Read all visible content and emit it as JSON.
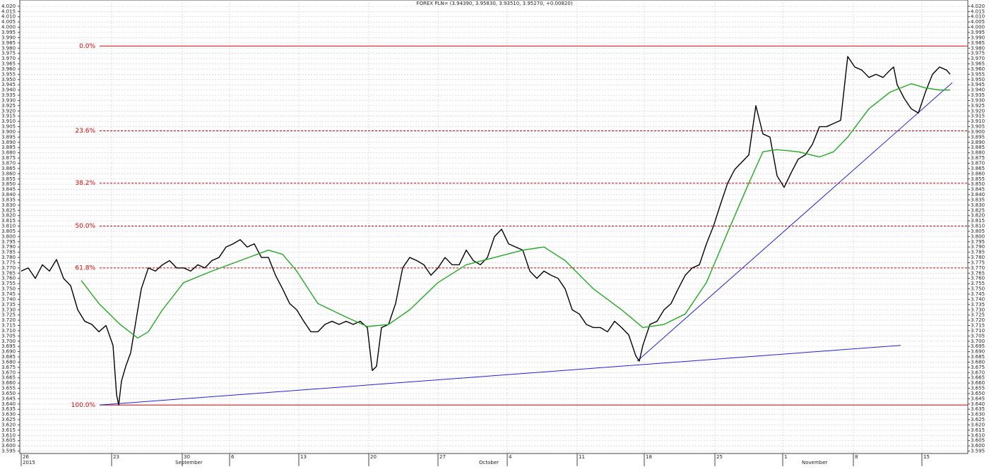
{
  "chart_data": {
    "type": "line",
    "title": "FOREX PLN= (3.94390, 3.95830, 3.93510, 3.95270, +0.00820)",
    "xlim": [
      28,
      1370
    ],
    "xticks": [
      {
        "value": 30,
        "label": "26"
      },
      {
        "value": 158,
        "label": "23"
      },
      {
        "value": 258,
        "label": "30"
      },
      {
        "value": 325,
        "label": "6"
      },
      {
        "value": 423,
        "label": "13"
      },
      {
        "value": 522,
        "label": "20"
      },
      {
        "value": 620,
        "label": "27"
      },
      {
        "value": 718,
        "label": "4"
      },
      {
        "value": 817,
        "label": "11"
      },
      {
        "value": 912,
        "label": "18"
      },
      {
        "value": 1012,
        "label": "25"
      },
      {
        "value": 1108,
        "label": "1"
      },
      {
        "value": 1208,
        "label": "8"
      },
      {
        "value": 1305,
        "label": "15"
      }
    ],
    "xgroups": [
      {
        "value": 30,
        "label": "2015"
      },
      {
        "value": 246,
        "label": "September"
      },
      {
        "value": 676,
        "label": "October"
      },
      {
        "value": 1133,
        "label": "November"
      }
    ],
    "ylim": [
      3.5927,
      4.026
    ],
    "yticks": [
      3.595,
      {
        "value": 3.6,
        "label": "3.600"
      },
      3.605,
      {
        "value": 3.61,
        "label": "3.610"
      },
      3.615,
      {
        "value": 3.62,
        "label": "3.620"
      },
      3.625,
      {
        "value": 3.63,
        "label": "3.630"
      },
      3.635,
      {
        "value": 3.64,
        "label": "3.640"
      },
      3.645,
      {
        "value": 3.65,
        "label": "3.650"
      },
      3.655,
      {
        "value": 3.66,
        "label": "3.660"
      },
      3.665,
      {
        "value": 3.67,
        "label": "3.670"
      },
      3.675,
      {
        "value": 3.68,
        "label": "3.680"
      },
      3.685,
      {
        "value": 3.69,
        "label": "3.690"
      },
      3.695,
      {
        "value": 3.7,
        "label": "3.700"
      },
      3.705,
      {
        "value": 3.71,
        "label": "3.710"
      },
      3.715,
      {
        "value": 3.72,
        "label": "3.720"
      },
      3.725,
      {
        "value": 3.73,
        "label": "3.730"
      },
      3.735,
      {
        "value": 3.74,
        "label": "3.740"
      },
      3.745,
      {
        "value": 3.75,
        "label": "3.750"
      },
      3.755,
      {
        "value": 3.76,
        "label": "3.760"
      },
      3.765,
      {
        "value": 3.77,
        "label": "3.770"
      },
      3.775,
      {
        "value": 3.78,
        "label": "3.780"
      },
      3.785,
      {
        "value": 3.79,
        "label": "3.790"
      },
      3.795,
      {
        "value": 3.8,
        "label": "3.800"
      },
      3.805,
      {
        "value": 3.81,
        "label": "3.810"
      },
      3.815,
      {
        "value": 3.82,
        "label": "3.820"
      },
      3.825,
      {
        "value": 3.83,
        "label": "3.830"
      },
      3.835,
      {
        "value": 3.84,
        "label": "3.840"
      },
      3.845,
      {
        "value": 3.85,
        "label": "3.850"
      },
      3.855,
      {
        "value": 3.86,
        "label": "3.860"
      },
      3.865,
      {
        "value": 3.87,
        "label": "3.870"
      },
      3.875,
      {
        "value": 3.88,
        "label": "3.880"
      },
      3.885,
      {
        "value": 3.89,
        "label": "3.890"
      },
      3.895,
      {
        "value": 3.9,
        "label": "3.900"
      },
      3.905,
      {
        "value": 3.91,
        "label": "3.910"
      },
      3.915,
      {
        "value": 3.92,
        "label": "3.920"
      },
      3.925,
      {
        "value": 3.93,
        "label": "3.930"
      },
      3.935,
      {
        "value": 3.94,
        "label": "3.940"
      },
      3.945,
      {
        "value": 3.95,
        "label": "3.950"
      },
      3.955,
      {
        "value": 3.96,
        "label": "3.960"
      },
      3.965,
      {
        "value": 3.97,
        "label": "3.970"
      },
      3.975,
      {
        "value": 3.98,
        "label": "3.980"
      },
      3.985,
      {
        "value": 3.99,
        "label": "3.990"
      },
      3.995,
      {
        "value": 4.0,
        "label": "4.000"
      },
      4.005,
      {
        "value": 4.01,
        "label": "4.010"
      },
      4.015,
      {
        "value": 4.02,
        "label": "4.020"
      }
    ],
    "grid": true,
    "series": [
      {
        "color": "#000000",
        "x": [
          30,
          40,
          50,
          60,
          70,
          80,
          90,
          100,
          110,
          120,
          130,
          140,
          150,
          160,
          165,
          168,
          172,
          178,
          185,
          195,
          200,
          210,
          220,
          230,
          240,
          250,
          260,
          270,
          280,
          290,
          300,
          310,
          320,
          330,
          340,
          350,
          360,
          370,
          380,
          390,
          400,
          410,
          420,
          430,
          440,
          450,
          460,
          470,
          480,
          490,
          500,
          510,
          520,
          527,
          533,
          540,
          550,
          560,
          570,
          580,
          590,
          600,
          610,
          620,
          630,
          640,
          650,
          660,
          670,
          680,
          690,
          700,
          710,
          720,
          730,
          740,
          750,
          760,
          770,
          780,
          790,
          800,
          810,
          820,
          830,
          840,
          850,
          860,
          870,
          880,
          890,
          900,
          905,
          910,
          920,
          930,
          940,
          950,
          960,
          970,
          980,
          990,
          1000,
          1010,
          1020,
          1030,
          1040,
          1050,
          1060,
          1070,
          1080,
          1090,
          1100,
          1110,
          1120,
          1130,
          1140,
          1150,
          1160,
          1170,
          1180,
          1190,
          1200,
          1210,
          1220,
          1230,
          1240,
          1250,
          1260,
          1265,
          1270,
          1280,
          1290,
          1300,
          1310,
          1320,
          1330,
          1340,
          1345
        ],
        "values": [
          3.767,
          3.77,
          3.76,
          3.773,
          3.767,
          3.778,
          3.76,
          3.753,
          3.73,
          3.719,
          3.716,
          3.709,
          3.715,
          3.696,
          3.649,
          3.639,
          3.662,
          3.676,
          3.689,
          3.73,
          3.75,
          3.77,
          3.767,
          3.773,
          3.777,
          3.77,
          3.77,
          3.767,
          3.773,
          3.77,
          3.777,
          3.78,
          3.79,
          3.793,
          3.797,
          3.79,
          3.793,
          3.78,
          3.78,
          3.763,
          3.75,
          3.736,
          3.73,
          3.719,
          3.709,
          3.709,
          3.716,
          3.719,
          3.716,
          3.719,
          3.716,
          3.719,
          3.713,
          3.672,
          3.676,
          3.713,
          3.716,
          3.736,
          3.77,
          3.78,
          3.777,
          3.773,
          3.763,
          3.77,
          3.78,
          3.773,
          3.773,
          3.787,
          3.777,
          3.773,
          3.78,
          3.8,
          3.807,
          3.793,
          3.79,
          3.787,
          3.767,
          3.76,
          3.767,
          3.763,
          3.76,
          3.75,
          3.73,
          3.726,
          3.716,
          3.713,
          3.713,
          3.709,
          3.719,
          3.713,
          3.706,
          3.686,
          3.681,
          3.696,
          3.716,
          3.719,
          3.73,
          3.736,
          3.75,
          3.763,
          3.77,
          3.773,
          3.793,
          3.81,
          3.831,
          3.851,
          3.864,
          3.871,
          3.878,
          3.925,
          3.898,
          3.895,
          3.858,
          3.847,
          3.861,
          3.874,
          3.878,
          3.888,
          3.905,
          3.905,
          3.908,
          3.911,
          3.972,
          3.962,
          3.959,
          3.952,
          3.955,
          3.952,
          3.959,
          3.962,
          3.945,
          3.932,
          3.922,
          3.918,
          3.938,
          3.955,
          3.962,
          3.959,
          3.955
        ]
      },
      {
        "color": "#22aa22",
        "x": [
          115,
          140,
          170,
          195,
          210,
          230,
          260,
          300,
          340,
          380,
          400,
          420,
          450,
          490,
          520,
          550,
          580,
          620,
          660,
          700,
          740,
          770,
          800,
          840,
          880,
          910,
          940,
          970,
          1000,
          1030,
          1060,
          1080,
          1100,
          1130,
          1160,
          1180,
          1200,
          1230,
          1260,
          1290,
          1310,
          1330,
          1345
        ],
        "values": [
          3.758,
          3.736,
          3.716,
          3.703,
          3.709,
          3.73,
          3.756,
          3.767,
          3.777,
          3.787,
          3.783,
          3.767,
          3.736,
          3.723,
          3.714,
          3.716,
          3.73,
          3.756,
          3.773,
          3.78,
          3.787,
          3.79,
          3.777,
          3.75,
          3.73,
          3.713,
          3.716,
          3.726,
          3.756,
          3.804,
          3.851,
          3.881,
          3.883,
          3.881,
          3.876,
          3.881,
          3.895,
          3.922,
          3.938,
          3.946,
          3.942,
          3.94,
          3.94
        ]
      }
    ],
    "fib_levels": [
      {
        "label": "0.0%",
        "value": 3.982
      },
      {
        "label": "23.6%",
        "value": 3.901
      },
      {
        "label": "38.2%",
        "value": 3.851
      },
      {
        "label": "50.0%",
        "value": 3.81
      },
      {
        "label": "61.8%",
        "value": 3.77
      },
      {
        "label": "100.0%",
        "value": 3.639
      }
    ],
    "fib_color": "#e00000",
    "trendlines": [
      {
        "color": "#2020e0",
        "x": [
          141,
          1275
        ],
        "values": [
          3.639,
          3.696
        ]
      },
      {
        "color": "#2020e0",
        "x": [
          902,
          1348
        ],
        "values": [
          3.681,
          3.947
        ]
      }
    ]
  }
}
